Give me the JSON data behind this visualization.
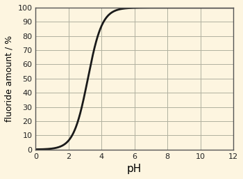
{
  "title": "",
  "xlabel": "pH",
  "ylabel": "fluoride amount / %",
  "xlim": [
    0,
    12
  ],
  "ylim": [
    0,
    100
  ],
  "xticks": [
    0,
    2,
    4,
    6,
    8,
    10,
    12
  ],
  "yticks": [
    0,
    10,
    20,
    30,
    40,
    50,
    60,
    70,
    80,
    90,
    100
  ],
  "pKa": 3.17,
  "background_color": "#fdf5e0",
  "line_color": "#1a1a1a",
  "grid_color": "#b0b0a0",
  "grid_major_color": "#333333",
  "line_width": 2.0,
  "xlabel_fontsize": 11,
  "ylabel_fontsize": 9,
  "tick_fontsize": 8
}
